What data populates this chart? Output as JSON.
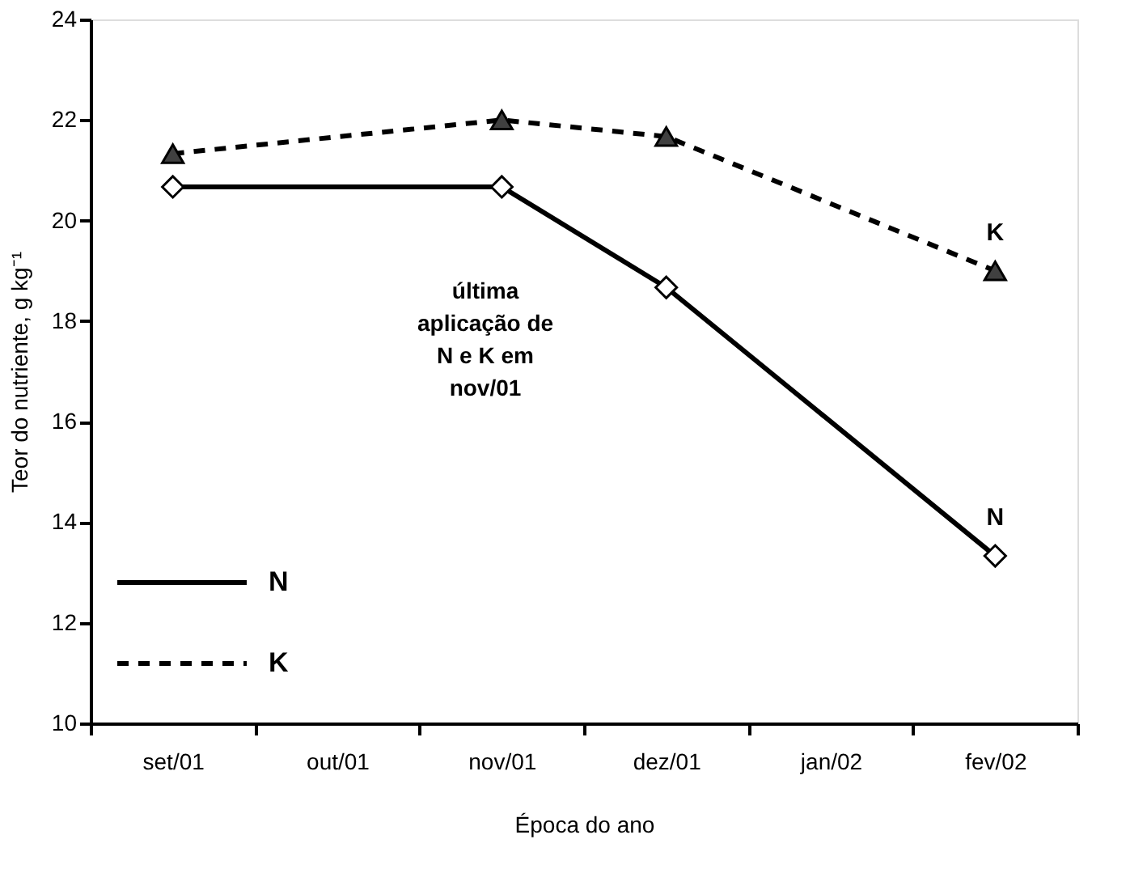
{
  "chart_data": {
    "type": "line",
    "categories": [
      "set/01",
      "out/01",
      "nov/01",
      "dez/01",
      "jan/02",
      "fev/02"
    ],
    "series": [
      {
        "name": "N",
        "color": "#000000",
        "marker": "diamond",
        "line_style": "solid",
        "values": [
          20.67,
          null,
          20.67,
          18.67,
          null,
          13.33
        ]
      },
      {
        "name": "K",
        "color": "#000000",
        "marker": "triangle",
        "line_style": "dashed",
        "values": [
          21.33,
          null,
          22.0,
          21.67,
          null,
          19.0
        ]
      }
    ],
    "xlabel": "Época do ano",
    "ylabel": "Teor do nutriente, g kg⁻¹",
    "ylim": [
      10,
      24
    ],
    "yticks": [
      10,
      12,
      14,
      16,
      18,
      20,
      22,
      24
    ],
    "annotations": [
      "última aplicação de N e K em nov/01"
    ],
    "legend": "bottom left",
    "grid": false
  }
}
